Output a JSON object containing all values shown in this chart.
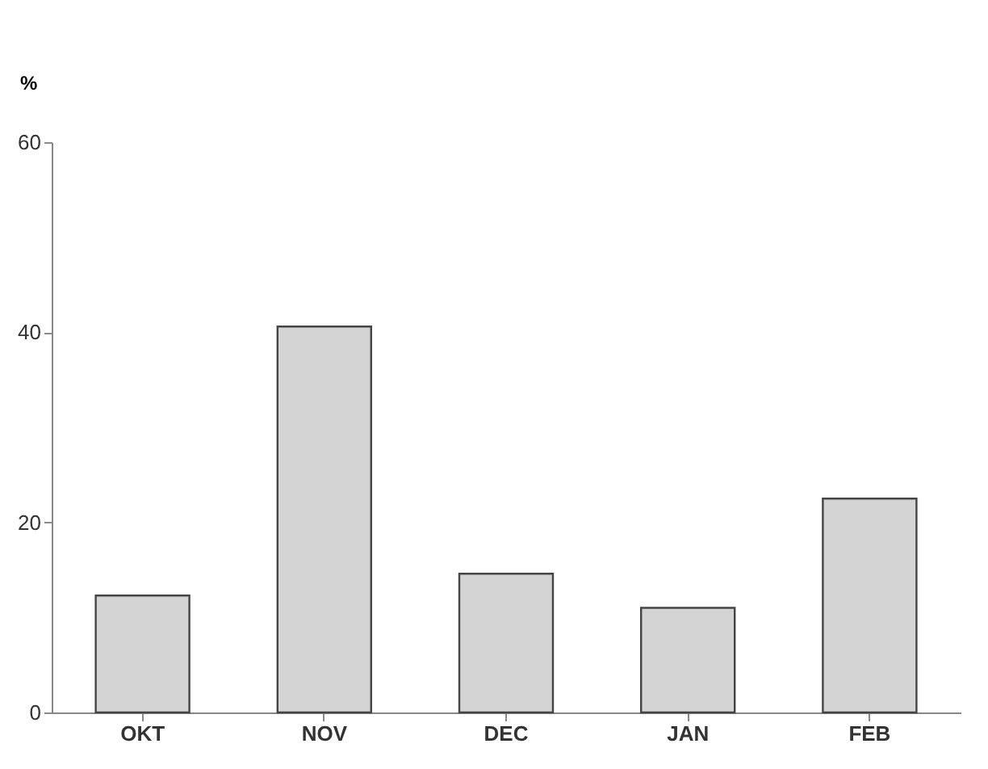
{
  "chart_data": {
    "type": "bar",
    "ylabel": "%",
    "categories": [
      "OKT",
      "NOV",
      "DEC",
      "JAN",
      "FEB"
    ],
    "values": [
      12.3,
      40.6,
      14.6,
      11.0,
      22.5
    ],
    "color": "#d4d4d4",
    "ylim": [
      0,
      60
    ],
    "yticks": [
      0,
      20,
      40,
      60
    ],
    "grid": false
  }
}
